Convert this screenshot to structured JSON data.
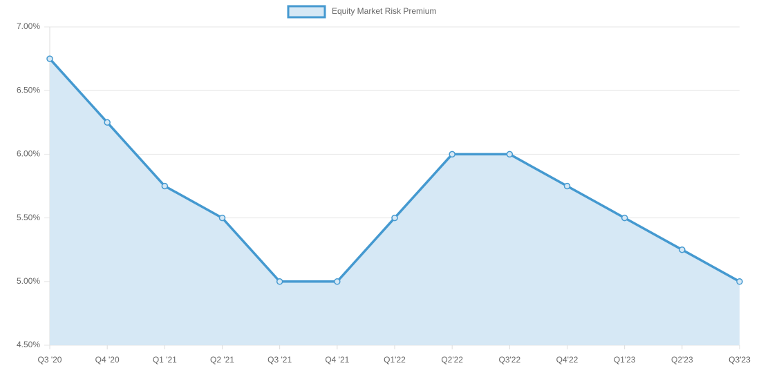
{
  "chart_data": {
    "type": "line",
    "categories": [
      "Q3 '20",
      "Q4 '20",
      "Q1 '21",
      "Q2 '21",
      "Q3 '21",
      "Q4 '21",
      "Q1'22",
      "Q2'22",
      "Q3'22",
      "Q4'22",
      "Q1'23",
      "Q2'23",
      "Q3'23"
    ],
    "series": [
      {
        "name": "Equity Market Risk Premium",
        "color": "#4499d0",
        "fill": "#d6e8f5",
        "values": [
          6.75,
          6.25,
          5.75,
          5.5,
          5.0,
          5.0,
          5.5,
          6.0,
          6.0,
          5.75,
          5.5,
          5.25,
          5.0
        ]
      }
    ],
    "ylim": [
      4.5,
      7.0
    ],
    "yticks": [
      {
        "value": 4.5,
        "label": "4.50%"
      },
      {
        "value": 5.0,
        "label": "5.00%"
      },
      {
        "value": 5.5,
        "label": "5.50%"
      },
      {
        "value": 6.0,
        "label": "6.00%"
      },
      {
        "value": 6.5,
        "label": "6.50%"
      },
      {
        "value": 7.0,
        "label": "7.00%"
      }
    ],
    "grid": true,
    "legend": "top"
  }
}
